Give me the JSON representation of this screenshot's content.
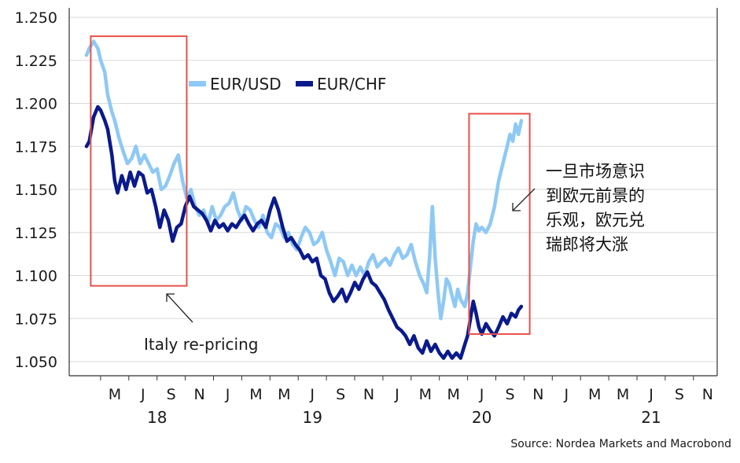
{
  "chart_data": {
    "type": "line",
    "source": "Source: Nordea Markets and Macrobond",
    "yticks": [
      "1.250",
      "1.225",
      "1.200",
      "1.175",
      "1.150",
      "1.125",
      "1.100",
      "1.075",
      "1.050"
    ],
    "ylim": [
      1.045,
      1.25
    ],
    "grid": true,
    "legend_position": "top-left",
    "colors": {
      "eurusd": "#8ec9f5",
      "eurchf": "#0a1a8c",
      "highlight_box": "#e8514a",
      "grid": "#d9d9d9"
    },
    "month_ticks": [
      {
        "label": "M",
        "t": 2.0
      },
      {
        "label": "J",
        "t": 4.0
      },
      {
        "label": "S",
        "t": 6.0
      },
      {
        "label": "N",
        "t": 8.0
      },
      {
        "label": "J",
        "t": 10.0
      },
      {
        "label": "M",
        "t": 12.0
      },
      {
        "label": "M",
        "t": 14.0
      },
      {
        "label": "J",
        "t": 16.0
      },
      {
        "label": "S",
        "t": 18.0
      },
      {
        "label": "N",
        "t": 20.0
      },
      {
        "label": "J",
        "t": 22.0
      },
      {
        "label": "M",
        "t": 24.0
      },
      {
        "label": "M",
        "t": 26.0
      },
      {
        "label": "J",
        "t": 28.0
      },
      {
        "label": "S",
        "t": 30.0
      },
      {
        "label": "N",
        "t": 32.0
      },
      {
        "label": "J",
        "t": 34.0
      },
      {
        "label": "M",
        "t": 36.0
      },
      {
        "label": "M",
        "t": 38.0
      },
      {
        "label": "J",
        "t": 40.0
      },
      {
        "label": "S",
        "t": 42.0
      },
      {
        "label": "N",
        "t": 44.0
      }
    ],
    "years": [
      {
        "label": "18",
        "t": 5.0
      },
      {
        "label": "19",
        "t": 16.0
      },
      {
        "label": "20",
        "t": 28.0
      },
      {
        "label": "21",
        "t": 40.0
      }
    ],
    "series": [
      {
        "name": "EUR/USD",
        "key": "eurusd",
        "points": [
          [
            0.0,
            1.228
          ],
          [
            0.2,
            1.232
          ],
          [
            0.5,
            1.236
          ],
          [
            0.8,
            1.232
          ],
          [
            1.0,
            1.225
          ],
          [
            1.3,
            1.218
          ],
          [
            1.5,
            1.205
          ],
          [
            1.8,
            1.195
          ],
          [
            2.0,
            1.19
          ],
          [
            2.3,
            1.18
          ],
          [
            2.6,
            1.172
          ],
          [
            2.9,
            1.165
          ],
          [
            3.2,
            1.168
          ],
          [
            3.5,
            1.175
          ],
          [
            3.8,
            1.165
          ],
          [
            4.1,
            1.17
          ],
          [
            4.4,
            1.165
          ],
          [
            4.7,
            1.16
          ],
          [
            5.0,
            1.162
          ],
          [
            5.3,
            1.15
          ],
          [
            5.6,
            1.152
          ],
          [
            5.9,
            1.158
          ],
          [
            6.2,
            1.165
          ],
          [
            6.5,
            1.17
          ],
          [
            6.8,
            1.155
          ],
          [
            7.1,
            1.145
          ],
          [
            7.4,
            1.15
          ],
          [
            7.7,
            1.14
          ],
          [
            8.0,
            1.135
          ],
          [
            8.3,
            1.138
          ],
          [
            8.6,
            1.13
          ],
          [
            8.9,
            1.14
          ],
          [
            9.2,
            1.132
          ],
          [
            9.5,
            1.135
          ],
          [
            9.8,
            1.14
          ],
          [
            10.1,
            1.142
          ],
          [
            10.4,
            1.148
          ],
          [
            10.7,
            1.138
          ],
          [
            11.0,
            1.132
          ],
          [
            11.3,
            1.14
          ],
          [
            11.6,
            1.138
          ],
          [
            11.9,
            1.132
          ],
          [
            12.2,
            1.128
          ],
          [
            12.5,
            1.135
          ],
          [
            12.8,
            1.125
          ],
          [
            13.1,
            1.122
          ],
          [
            13.4,
            1.13
          ],
          [
            13.7,
            1.128
          ],
          [
            14.0,
            1.122
          ],
          [
            14.3,
            1.125
          ],
          [
            14.6,
            1.118
          ],
          [
            14.9,
            1.115
          ],
          [
            15.2,
            1.122
          ],
          [
            15.5,
            1.128
          ],
          [
            15.8,
            1.125
          ],
          [
            16.1,
            1.118
          ],
          [
            16.4,
            1.12
          ],
          [
            16.7,
            1.125
          ],
          [
            17.0,
            1.115
          ],
          [
            17.3,
            1.108
          ],
          [
            17.6,
            1.1
          ],
          [
            17.9,
            1.11
          ],
          [
            18.2,
            1.108
          ],
          [
            18.5,
            1.1
          ],
          [
            18.8,
            1.106
          ],
          [
            19.1,
            1.1
          ],
          [
            19.4,
            1.105
          ],
          [
            19.7,
            1.1
          ],
          [
            20.0,
            1.108
          ],
          [
            20.3,
            1.112
          ],
          [
            20.6,
            1.105
          ],
          [
            20.9,
            1.108
          ],
          [
            21.2,
            1.11
          ],
          [
            21.5,
            1.106
          ],
          [
            21.8,
            1.112
          ],
          [
            22.1,
            1.116
          ],
          [
            22.4,
            1.11
          ],
          [
            22.7,
            1.112
          ],
          [
            23.0,
            1.118
          ],
          [
            23.3,
            1.108
          ],
          [
            23.6,
            1.1
          ],
          [
            23.9,
            1.095
          ],
          [
            24.1,
            1.09
          ],
          [
            24.3,
            1.11
          ],
          [
            24.5,
            1.14
          ],
          [
            24.7,
            1.11
          ],
          [
            24.9,
            1.09
          ],
          [
            25.1,
            1.075
          ],
          [
            25.3,
            1.085
          ],
          [
            25.5,
            1.098
          ],
          [
            25.7,
            1.095
          ],
          [
            25.9,
            1.088
          ],
          [
            26.1,
            1.082
          ],
          [
            26.3,
            1.092
          ],
          [
            26.5,
            1.086
          ],
          [
            26.8,
            1.082
          ],
          [
            27.0,
            1.09
          ],
          [
            27.2,
            1.105
          ],
          [
            27.4,
            1.12
          ],
          [
            27.6,
            1.13
          ],
          [
            27.8,
            1.126
          ],
          [
            28.0,
            1.128
          ],
          [
            28.3,
            1.125
          ],
          [
            28.6,
            1.13
          ],
          [
            28.9,
            1.14
          ],
          [
            29.2,
            1.155
          ],
          [
            29.5,
            1.165
          ],
          [
            29.8,
            1.175
          ],
          [
            30.0,
            1.182
          ],
          [
            30.2,
            1.178
          ],
          [
            30.4,
            1.188
          ],
          [
            30.6,
            1.182
          ],
          [
            30.8,
            1.19
          ]
        ]
      },
      {
        "name": "EUR/CHF",
        "key": "eurchf",
        "points": [
          [
            0.0,
            1.175
          ],
          [
            0.2,
            1.178
          ],
          [
            0.5,
            1.192
          ],
          [
            0.8,
            1.198
          ],
          [
            1.0,
            1.196
          ],
          [
            1.3,
            1.19
          ],
          [
            1.5,
            1.185
          ],
          [
            1.8,
            1.17
          ],
          [
            2.0,
            1.155
          ],
          [
            2.2,
            1.148
          ],
          [
            2.5,
            1.158
          ],
          [
            2.8,
            1.15
          ],
          [
            3.1,
            1.16
          ],
          [
            3.4,
            1.152
          ],
          [
            3.7,
            1.16
          ],
          [
            4.0,
            1.158
          ],
          [
            4.3,
            1.148
          ],
          [
            4.6,
            1.15
          ],
          [
            4.9,
            1.14
          ],
          [
            5.2,
            1.128
          ],
          [
            5.5,
            1.138
          ],
          [
            5.8,
            1.132
          ],
          [
            6.1,
            1.12
          ],
          [
            6.4,
            1.128
          ],
          [
            6.7,
            1.13
          ],
          [
            7.0,
            1.14
          ],
          [
            7.3,
            1.146
          ],
          [
            7.6,
            1.14
          ],
          [
            7.9,
            1.138
          ],
          [
            8.2,
            1.136
          ],
          [
            8.5,
            1.132
          ],
          [
            8.8,
            1.126
          ],
          [
            9.1,
            1.132
          ],
          [
            9.4,
            1.128
          ],
          [
            9.7,
            1.13
          ],
          [
            10.0,
            1.126
          ],
          [
            10.3,
            1.13
          ],
          [
            10.6,
            1.128
          ],
          [
            10.9,
            1.132
          ],
          [
            11.2,
            1.135
          ],
          [
            11.5,
            1.13
          ],
          [
            11.8,
            1.126
          ],
          [
            12.1,
            1.13
          ],
          [
            12.4,
            1.132
          ],
          [
            12.7,
            1.128
          ],
          [
            13.0,
            1.138
          ],
          [
            13.3,
            1.145
          ],
          [
            13.6,
            1.138
          ],
          [
            13.9,
            1.128
          ],
          [
            14.2,
            1.12
          ],
          [
            14.5,
            1.122
          ],
          [
            14.8,
            1.118
          ],
          [
            15.1,
            1.115
          ],
          [
            15.4,
            1.11
          ],
          [
            15.7,
            1.112
          ],
          [
            16.0,
            1.108
          ],
          [
            16.3,
            1.11
          ],
          [
            16.6,
            1.1
          ],
          [
            16.9,
            1.098
          ],
          [
            17.2,
            1.09
          ],
          [
            17.5,
            1.085
          ],
          [
            17.8,
            1.088
          ],
          [
            18.1,
            1.092
          ],
          [
            18.4,
            1.085
          ],
          [
            18.7,
            1.09
          ],
          [
            19.0,
            1.096
          ],
          [
            19.3,
            1.092
          ],
          [
            19.6,
            1.098
          ],
          [
            19.9,
            1.102
          ],
          [
            20.2,
            1.096
          ],
          [
            20.5,
            1.094
          ],
          [
            20.8,
            1.09
          ],
          [
            21.1,
            1.086
          ],
          [
            21.4,
            1.08
          ],
          [
            21.7,
            1.075
          ],
          [
            22.0,
            1.07
          ],
          [
            22.3,
            1.068
          ],
          [
            22.6,
            1.065
          ],
          [
            22.9,
            1.06
          ],
          [
            23.2,
            1.065
          ],
          [
            23.5,
            1.058
          ],
          [
            23.8,
            1.055
          ],
          [
            24.1,
            1.062
          ],
          [
            24.4,
            1.056
          ],
          [
            24.7,
            1.06
          ],
          [
            25.0,
            1.055
          ],
          [
            25.3,
            1.052
          ],
          [
            25.6,
            1.056
          ],
          [
            25.9,
            1.052
          ],
          [
            26.2,
            1.055
          ],
          [
            26.5,
            1.052
          ],
          [
            26.8,
            1.06
          ],
          [
            27.0,
            1.065
          ],
          [
            27.2,
            1.075
          ],
          [
            27.4,
            1.085
          ],
          [
            27.6,
            1.078
          ],
          [
            27.8,
            1.07
          ],
          [
            28.0,
            1.066
          ],
          [
            28.3,
            1.072
          ],
          [
            28.6,
            1.068
          ],
          [
            28.9,
            1.065
          ],
          [
            29.2,
            1.07
          ],
          [
            29.5,
            1.076
          ],
          [
            29.8,
            1.072
          ],
          [
            30.1,
            1.078
          ],
          [
            30.4,
            1.076
          ],
          [
            30.6,
            1.08
          ],
          [
            30.8,
            1.082
          ]
        ]
      }
    ],
    "annotations": [
      {
        "id": "italy",
        "text": "Italy re-pricing"
      },
      {
        "id": "cn1",
        "text": "一旦市场意识"
      },
      {
        "id": "cn2",
        "text": "到欧元前景的"
      },
      {
        "id": "cn3",
        "text": "乐观，欧元兑"
      },
      {
        "id": "cn4",
        "text": "瑞郎将大涨"
      }
    ],
    "highlight_boxes": [
      {
        "id": "box-2018",
        "t0": 0.3,
        "t1": 7.1,
        "y0": 1.094,
        "y1": 1.239
      },
      {
        "id": "box-2020",
        "t0": 27.1,
        "t1": 31.4,
        "y0": 1.066,
        "y1": 1.194
      }
    ]
  }
}
